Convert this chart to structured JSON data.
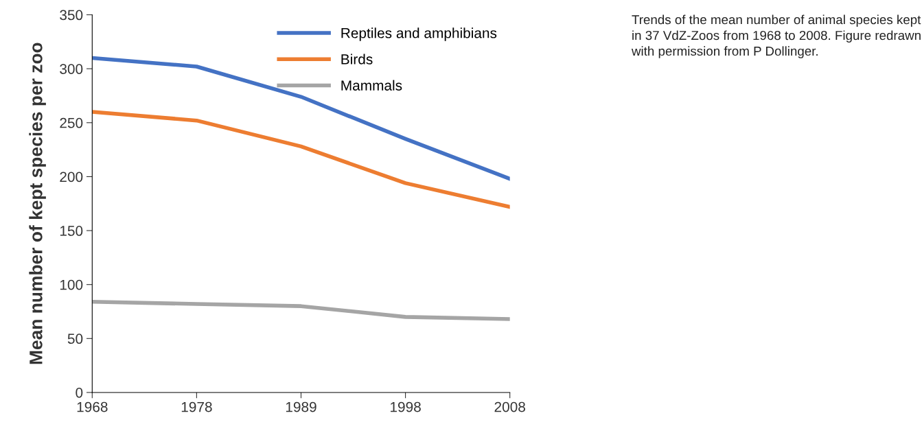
{
  "chart_data": {
    "type": "line",
    "ylabel": "Mean number of kept species per zoo",
    "categories": [
      "1968",
      "1978",
      "1989",
      "1998",
      "2008"
    ],
    "series": [
      {
        "name": "Reptiles and amphibians",
        "color": "#4472c4",
        "values": [
          310,
          302,
          274,
          235,
          198
        ]
      },
      {
        "name": "Birds",
        "color": "#ed7d31",
        "values": [
          260,
          252,
          228,
          194,
          172
        ]
      },
      {
        "name": "Mammals",
        "color": "#a5a5a5",
        "values": [
          84,
          82,
          80,
          70,
          68
        ]
      }
    ],
    "ylim": [
      0,
      350
    ],
    "yticks": [
      0,
      50,
      100,
      150,
      200,
      250,
      300,
      350
    ],
    "grid": false,
    "legend": "top right",
    "marker": "none",
    "line_style": "solid",
    "annotations": [
      "Trends of the mean number of animal species kept in 37 VdZ-Zoos from 1968 to 2008. Figure redrawn with permission from P Dollinger."
    ]
  }
}
